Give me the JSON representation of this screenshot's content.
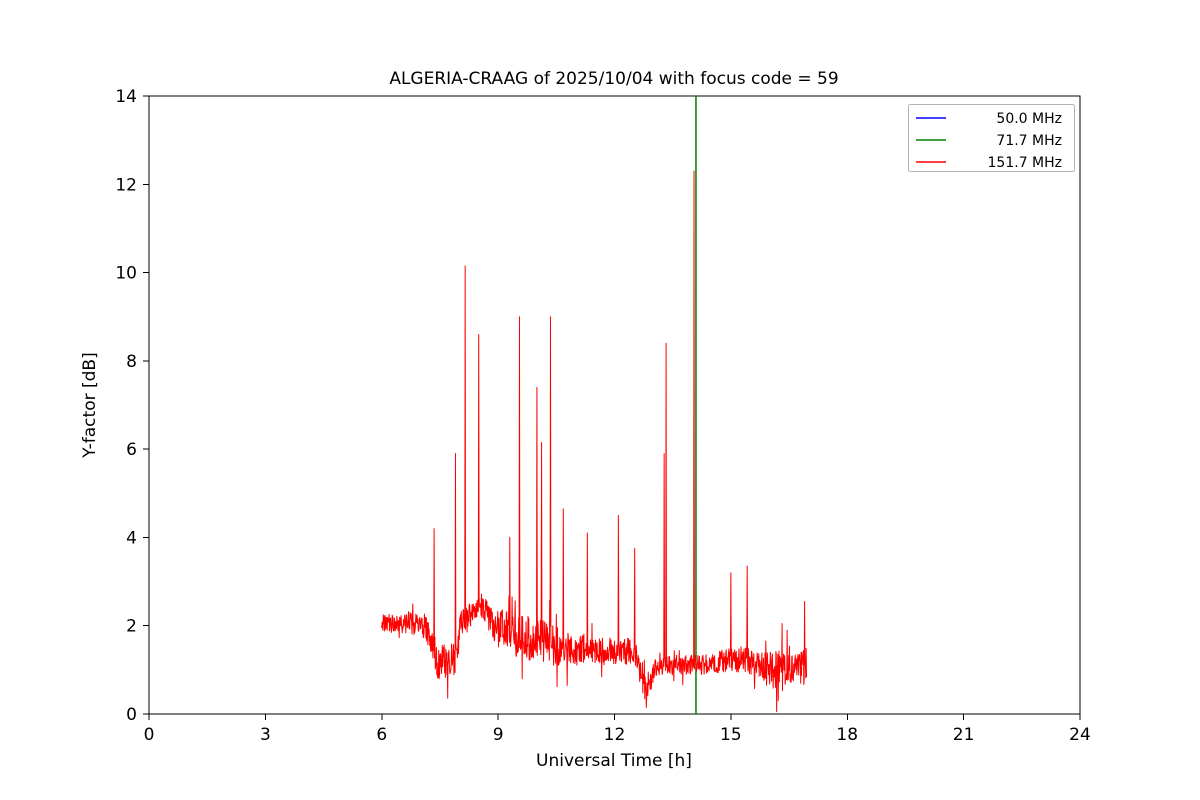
{
  "chart_data": {
    "type": "line",
    "title": "ALGERIA-CRAAG of 2025/10/04 with focus code = 59",
    "xlabel": "Universal Time [h]",
    "ylabel": "Y-factor [dB]",
    "xlim": [
      0,
      24
    ],
    "ylim": [
      0,
      14
    ],
    "xticks": [
      0,
      3,
      6,
      9,
      12,
      15,
      18,
      21,
      24
    ],
    "xtick_labels": [
      "0",
      "3",
      "6",
      "9",
      "12",
      "15",
      "18",
      "21",
      "24"
    ],
    "yticks": [
      0,
      2,
      4,
      6,
      8,
      10,
      12,
      14
    ],
    "ytick_labels": [
      "0",
      "2",
      "4",
      "6",
      "8",
      "10",
      "12",
      "14"
    ],
    "grid": false,
    "legend_position": "upper right",
    "series": [
      {
        "id": "blue",
        "label": "50.0 MHz",
        "color": "#0000ff",
        "type": "line",
        "points": []
      },
      {
        "id": "green",
        "label": "71.7 MHz",
        "color": "#008000",
        "type": "vertical-line",
        "x": 14.1,
        "y_span": [
          0,
          14
        ]
      },
      {
        "id": "red",
        "label": "151.7 MHz",
        "color": "#ff0000",
        "type": "noisy-line",
        "x_range": [
          6.0,
          16.95
        ],
        "x_step": 0.01,
        "baseline": [
          [
            6.0,
            2.05,
            0.2
          ],
          [
            6.6,
            2.05,
            0.22
          ],
          [
            7.1,
            2.0,
            0.28
          ],
          [
            7.3,
            1.6,
            0.35
          ],
          [
            7.45,
            1.15,
            0.4
          ],
          [
            7.9,
            1.2,
            0.4
          ],
          [
            8.05,
            2.1,
            0.3
          ],
          [
            8.45,
            2.3,
            0.3
          ],
          [
            8.6,
            2.4,
            0.25
          ],
          [
            8.9,
            2.0,
            0.45
          ],
          [
            9.4,
            1.8,
            0.5
          ],
          [
            9.9,
            1.7,
            0.5
          ],
          [
            10.4,
            1.6,
            0.5
          ],
          [
            10.8,
            1.45,
            0.4
          ],
          [
            11.3,
            1.45,
            0.3
          ],
          [
            11.9,
            1.4,
            0.3
          ],
          [
            12.3,
            1.45,
            0.33
          ],
          [
            12.6,
            1.2,
            0.35
          ],
          [
            12.8,
            0.6,
            0.4
          ],
          [
            12.95,
            0.8,
            0.3
          ],
          [
            13.1,
            1.1,
            0.22
          ],
          [
            13.7,
            1.1,
            0.22
          ],
          [
            14.3,
            1.12,
            0.24
          ],
          [
            14.8,
            1.2,
            0.26
          ],
          [
            15.3,
            1.25,
            0.3
          ],
          [
            15.7,
            1.1,
            0.3
          ],
          [
            16.05,
            0.95,
            0.45
          ],
          [
            16.35,
            1.15,
            0.45
          ],
          [
            16.6,
            1.0,
            0.3
          ],
          [
            16.95,
            1.1,
            0.45
          ]
        ],
        "spikes": [
          [
            7.35,
            4.2
          ],
          [
            7.9,
            5.9
          ],
          [
            8.15,
            10.15
          ],
          [
            8.5,
            8.6
          ],
          [
            9.3,
            4.0
          ],
          [
            9.55,
            9.0
          ],
          [
            10.0,
            7.4
          ],
          [
            10.12,
            6.15
          ],
          [
            10.35,
            9.0
          ],
          [
            10.68,
            4.65
          ],
          [
            11.3,
            4.1
          ],
          [
            12.1,
            4.5
          ],
          [
            12.52,
            3.75
          ],
          [
            13.28,
            5.9
          ],
          [
            13.33,
            8.4
          ],
          [
            14.05,
            12.3
          ],
          [
            15.0,
            3.2
          ],
          [
            15.42,
            3.35
          ],
          [
            16.32,
            2.05
          ],
          [
            16.45,
            1.9
          ],
          [
            16.9,
            2.55
          ]
        ],
        "dips": [
          [
            9.62,
            0.8
          ],
          [
            10.52,
            0.62
          ],
          [
            10.78,
            0.65
          ],
          [
            12.82,
            0.15
          ],
          [
            16.18,
            0.05
          ],
          [
            16.22,
            0.3
          ]
        ]
      }
    ]
  }
}
